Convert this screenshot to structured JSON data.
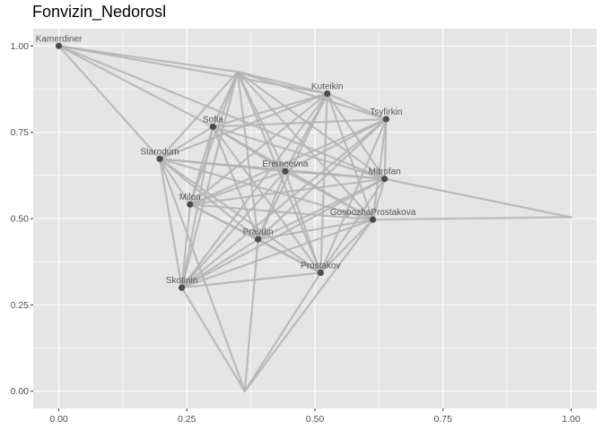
{
  "chart_data": {
    "type": "network",
    "title": "Fonvizin_Nedorosl",
    "xlabel": "",
    "ylabel": "",
    "xlim": [
      -0.05,
      1.05
    ],
    "ylim": [
      -0.05,
      1.05
    ],
    "x_ticks": [
      0.0,
      0.25,
      0.5,
      0.75,
      1.0
    ],
    "x_tick_labels": [
      "0.00",
      "0.25",
      "0.50",
      "0.75",
      "1.00"
    ],
    "y_ticks": [
      0.0,
      0.25,
      0.5,
      0.75,
      1.0
    ],
    "y_tick_labels": [
      "0.00",
      "0.25",
      "0.50",
      "0.75",
      "1.00"
    ],
    "grid": true,
    "colors": {
      "panel": "#e5e5e5",
      "grid": "#ffffff",
      "edge": "#b3b3b3",
      "node": "#4d4d4d",
      "label": "#555555"
    },
    "nodes": [
      {
        "name": "Kamerdiner",
        "label": "Kamerdiner",
        "x": 0.0,
        "y": 1.0
      },
      {
        "name": "Kuteikin",
        "label": "Kuteikin",
        "x": 0.524,
        "y": 0.862
      },
      {
        "name": "Tsyfirkin",
        "label": "Tsyfirkin",
        "x": 0.639,
        "y": 0.788
      },
      {
        "name": "Sofia",
        "label": "Sofia",
        "x": 0.301,
        "y": 0.766
      },
      {
        "name": "Starodum",
        "label": "Starodum",
        "x": 0.197,
        "y": 0.673
      },
      {
        "name": "Eremeevna",
        "label": "Eremeevna",
        "x": 0.442,
        "y": 0.637
      },
      {
        "name": "Mitrofan",
        "label": "Mitrofan",
        "x": 0.636,
        "y": 0.615
      },
      {
        "name": "Milon",
        "label": "Milon",
        "x": 0.256,
        "y": 0.541
      },
      {
        "name": "GospozhaProstakova",
        "label": "GospozhaProstakova",
        "x": 0.613,
        "y": 0.497
      },
      {
        "name": "Pravdin",
        "label": "Pravdin",
        "x": 0.389,
        "y": 0.44
      },
      {
        "name": "Prostakov",
        "label": "Prostakov",
        "x": 0.511,
        "y": 0.343
      },
      {
        "name": "Skotinin",
        "label": "Skotinin",
        "x": 0.24,
        "y": 0.3
      },
      {
        "name": "",
        "label": "",
        "x": 0.349,
        "y": 0.925,
        "unlabeled": true
      },
      {
        "name": "",
        "label": "",
        "x": 1.0,
        "y": 0.504,
        "unlabeled": true
      },
      {
        "name": "",
        "label": "",
        "x": 0.363,
        "y": 0.0,
        "unlabeled": true
      }
    ],
    "edges": [
      [
        0,
        4
      ],
      [
        0,
        12
      ],
      [
        0,
        6
      ],
      [
        0,
        3
      ],
      [
        0,
        1
      ],
      [
        12,
        1
      ],
      [
        12,
        2
      ],
      [
        12,
        3
      ],
      [
        12,
        4
      ],
      [
        12,
        5
      ],
      [
        12,
        7
      ],
      [
        12,
        9
      ],
      [
        12,
        11
      ],
      [
        12,
        6
      ],
      [
        12,
        8
      ],
      [
        12,
        10
      ],
      [
        1,
        2
      ],
      [
        1,
        3
      ],
      [
        1,
        4
      ],
      [
        1,
        5
      ],
      [
        1,
        6
      ],
      [
        1,
        7
      ],
      [
        1,
        8
      ],
      [
        1,
        9
      ],
      [
        1,
        10
      ],
      [
        1,
        11
      ],
      [
        2,
        3
      ],
      [
        2,
        5
      ],
      [
        2,
        6
      ],
      [
        2,
        7
      ],
      [
        2,
        8
      ],
      [
        2,
        9
      ],
      [
        2,
        10
      ],
      [
        2,
        11
      ],
      [
        3,
        4
      ],
      [
        3,
        5
      ],
      [
        3,
        6
      ],
      [
        3,
        7
      ],
      [
        3,
        8
      ],
      [
        3,
        9
      ],
      [
        3,
        10
      ],
      [
        3,
        11
      ],
      [
        4,
        5
      ],
      [
        4,
        6
      ],
      [
        4,
        7
      ],
      [
        4,
        8
      ],
      [
        4,
        9
      ],
      [
        4,
        10
      ],
      [
        4,
        11
      ],
      [
        4,
        14
      ],
      [
        5,
        6
      ],
      [
        5,
        7
      ],
      [
        5,
        8
      ],
      [
        5,
        9
      ],
      [
        5,
        10
      ],
      [
        5,
        11
      ],
      [
        6,
        7
      ],
      [
        6,
        8
      ],
      [
        6,
        9
      ],
      [
        6,
        10
      ],
      [
        6,
        11
      ],
      [
        6,
        13
      ],
      [
        7,
        8
      ],
      [
        7,
        9
      ],
      [
        7,
        10
      ],
      [
        7,
        11
      ],
      [
        8,
        9
      ],
      [
        8,
        10
      ],
      [
        8,
        11
      ],
      [
        8,
        13
      ],
      [
        8,
        14
      ],
      [
        9,
        10
      ],
      [
        9,
        11
      ],
      [
        9,
        14
      ],
      [
        10,
        11
      ],
      [
        10,
        14
      ],
      [
        11,
        14
      ]
    ]
  }
}
